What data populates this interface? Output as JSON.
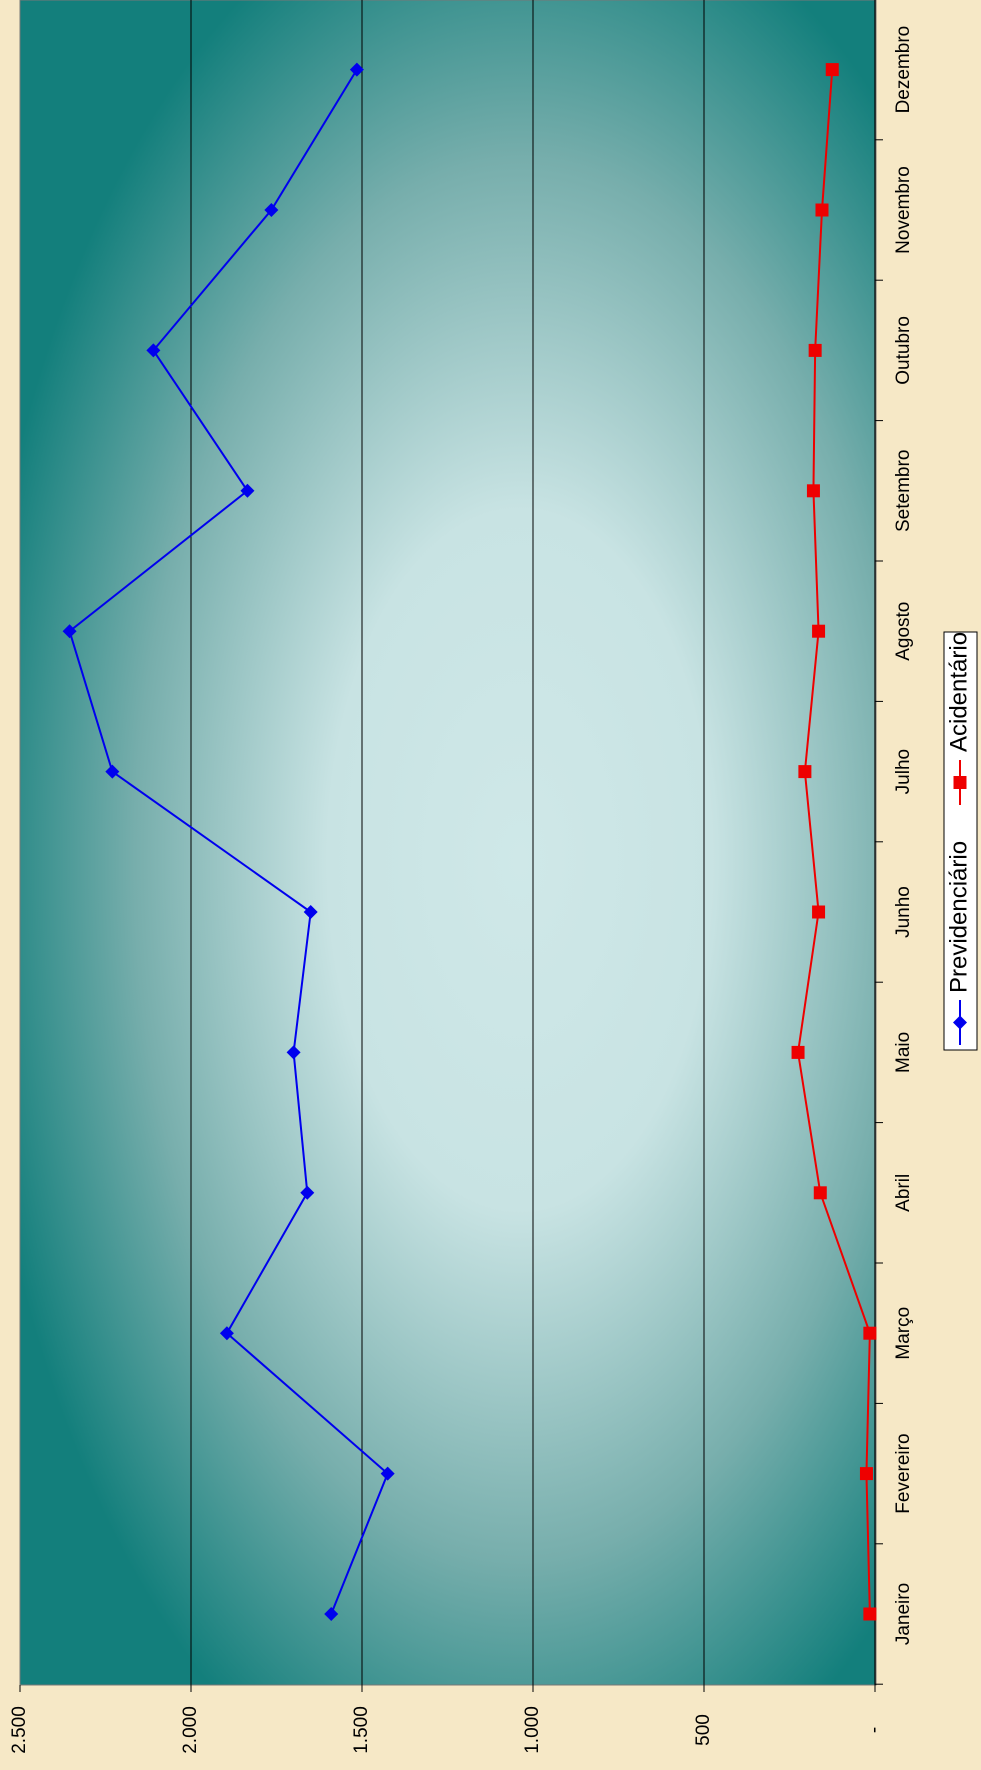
{
  "chart_data": {
    "type": "line",
    "orientation": "rotated-90",
    "categories": [
      "Janeiro",
      "Fevereiro",
      "Março",
      "Abril",
      "Maio",
      "Junho",
      "Julho",
      "Agosto",
      "Setembro",
      "Outubro",
      "Novembro",
      "Dezembro"
    ],
    "series": [
      {
        "name": "Previdenciário",
        "color": "#0000ee",
        "marker": "diamond",
        "values": [
          1590,
          1425,
          1895,
          1660,
          1700,
          1650,
          2230,
          2355,
          1835,
          2110,
          1765,
          1515
        ]
      },
      {
        "name": "Acidentário",
        "color": "#ee0000",
        "marker": "square",
        "values": [
          15,
          25,
          15,
          160,
          225,
          165,
          205,
          165,
          180,
          175,
          155,
          125
        ]
      }
    ],
    "ylim": [
      0,
      2500
    ],
    "yticks": [
      0,
      500,
      1000,
      1500,
      2000,
      2500
    ],
    "ytick_labels": [
      "-",
      "500",
      "1.000",
      "1.500",
      "2.000",
      "2.500"
    ],
    "grid": true,
    "legend_placement": "right",
    "colors": {
      "background": "#f6e8c6",
      "plot_dark": "#137f7c",
      "plot_light": "#cfe8e8"
    }
  }
}
